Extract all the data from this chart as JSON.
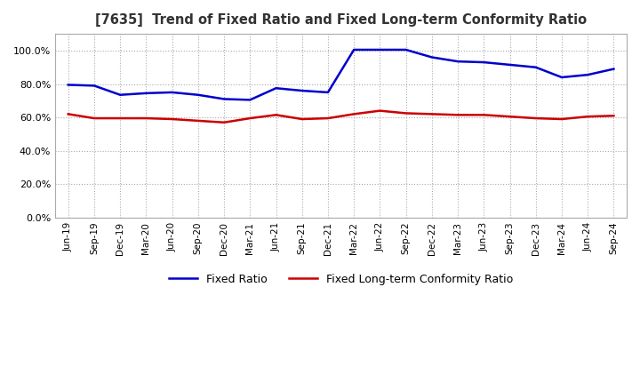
{
  "title": "[7635]  Trend of Fixed Ratio and Fixed Long-term Conformity Ratio",
  "x_labels": [
    "Jun-19",
    "Sep-19",
    "Dec-19",
    "Mar-20",
    "Jun-20",
    "Sep-20",
    "Dec-20",
    "Mar-21",
    "Jun-21",
    "Sep-21",
    "Dec-21",
    "Mar-22",
    "Jun-22",
    "Sep-22",
    "Dec-22",
    "Mar-23",
    "Jun-23",
    "Sep-23",
    "Dec-23",
    "Mar-24",
    "Jun-24",
    "Sep-24"
  ],
  "fixed_ratio": [
    79.5,
    79.0,
    73.5,
    74.5,
    75.0,
    73.5,
    71.0,
    70.5,
    77.5,
    76.0,
    75.0,
    100.5,
    100.5,
    100.5,
    96.0,
    93.5,
    93.0,
    91.5,
    90.0,
    84.0,
    85.5,
    89.0
  ],
  "fixed_lt_ratio": [
    62.0,
    59.5,
    59.5,
    59.5,
    59.0,
    58.0,
    57.0,
    59.5,
    61.5,
    59.0,
    59.5,
    62.0,
    64.0,
    62.5,
    62.0,
    61.5,
    61.5,
    60.5,
    59.5,
    59.0,
    60.5,
    61.0
  ],
  "fixed_ratio_color": "#0000CC",
  "fixed_lt_ratio_color": "#CC0000",
  "background_color": "#FFFFFF",
  "grid_color": "#AAAAAA",
  "ylim": [
    0.0,
    110.0
  ],
  "yticks": [
    0.0,
    20.0,
    40.0,
    60.0,
    80.0,
    100.0
  ],
  "legend_fixed": "Fixed Ratio",
  "legend_lt": "Fixed Long-term Conformity Ratio"
}
